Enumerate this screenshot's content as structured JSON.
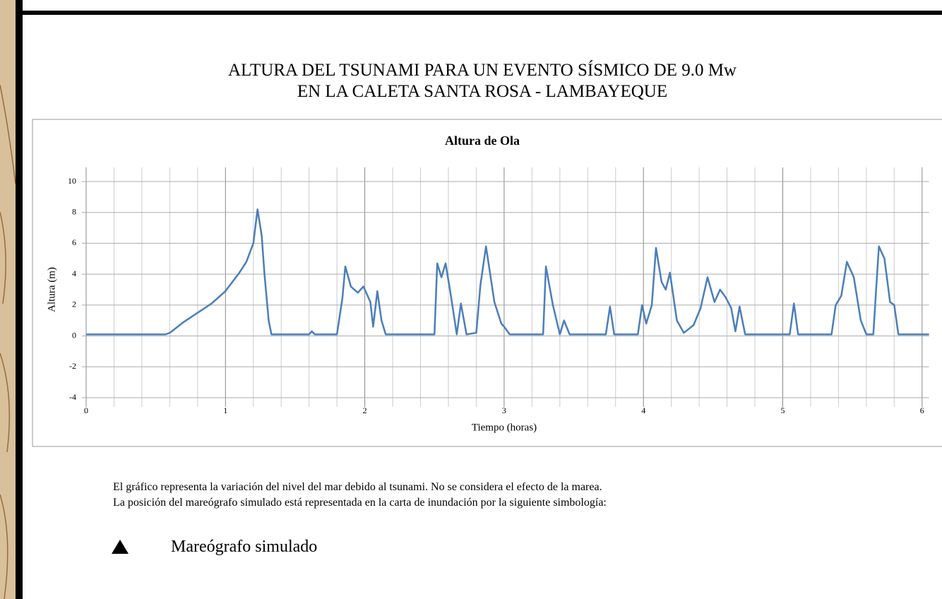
{
  "header": {
    "title_line1": "ALTURA DEL TSUNAMI PARA UN EVENTO SÍSMICO DE 9.0 Mw",
    "title_line2": "EN LA CALETA SANTA ROSA - LAMBAYEQUE"
  },
  "chart_data": {
    "type": "line",
    "title": "Altura de Ola",
    "x_label": "Tiempo (horas)",
    "y_label": "Altura (m)",
    "xlim": [
      0,
      6.05
    ],
    "ylim": [
      -4,
      10
    ],
    "xticks": [
      0,
      1,
      2,
      3,
      4,
      5,
      6
    ],
    "x_minor_grid": [
      0.2,
      0.4,
      0.6,
      0.8,
      1.2,
      1.4,
      1.6,
      1.8,
      2.2,
      2.4,
      2.6,
      2.8,
      3.2,
      3.4,
      3.6,
      3.8,
      4.2,
      4.4,
      4.6,
      4.8,
      5.2,
      5.4,
      5.6,
      5.8
    ],
    "yticks": [
      -4,
      -2,
      0,
      2,
      4,
      6,
      8,
      10
    ],
    "grid": true,
    "series": [
      {
        "color": "#4a7ebb",
        "x": [
          0,
          0.57,
          0.6,
          0.7,
          0.8,
          0.9,
          1.0,
          1.1,
          1.15,
          1.2,
          1.23,
          1.26,
          1.28,
          1.31,
          1.33,
          1.6,
          1.62,
          1.64,
          1.8,
          1.84,
          1.86,
          1.9,
          1.95,
          1.99,
          2.04,
          2.06,
          2.09,
          2.12,
          2.15,
          2.5,
          2.52,
          2.55,
          2.58,
          2.62,
          2.66,
          2.69,
          2.73,
          2.8,
          2.83,
          2.87,
          2.93,
          2.98,
          3.0,
          3.04,
          3.28,
          3.3,
          3.35,
          3.4,
          3.43,
          3.47,
          3.73,
          3.76,
          3.79,
          3.96,
          3.99,
          4.02,
          4.06,
          4.09,
          4.13,
          4.16,
          4.19,
          4.24,
          4.29,
          4.36,
          4.41,
          4.46,
          4.51,
          4.55,
          4.59,
          4.63,
          4.66,
          4.69,
          4.73,
          5.05,
          5.08,
          5.11,
          5.35,
          5.38,
          5.42,
          5.46,
          5.51,
          5.56,
          5.6,
          5.65,
          5.67,
          5.69,
          5.73,
          5.77,
          5.8,
          5.83,
          6.05
        ],
        "values": [
          0.1,
          0.1,
          0.2,
          0.9,
          1.5,
          2.1,
          2.9,
          4.1,
          4.8,
          6.0,
          8.2,
          6.5,
          4.0,
          1.0,
          0.1,
          0.1,
          0.3,
          0.1,
          0.1,
          2.5,
          4.5,
          3.2,
          2.8,
          3.2,
          2.2,
          0.6,
          2.9,
          1.0,
          0.1,
          0.1,
          4.7,
          3.8,
          4.7,
          2.5,
          0.1,
          2.1,
          0.1,
          0.2,
          3.3,
          5.8,
          2.2,
          0.8,
          0.6,
          0.1,
          0.1,
          4.5,
          2.0,
          0.1,
          1.0,
          0.1,
          0.1,
          1.9,
          0.1,
          0.1,
          2.0,
          0.8,
          2.0,
          5.7,
          3.5,
          3.0,
          4.1,
          1.0,
          0.2,
          0.7,
          1.8,
          3.8,
          2.2,
          3.0,
          2.5,
          1.8,
          0.3,
          1.9,
          0.1,
          0.1,
          2.1,
          0.1,
          0.1,
          2.0,
          2.6,
          4.8,
          3.8,
          1.0,
          0.1,
          0.1,
          3.0,
          5.8,
          5.0,
          2.2,
          2.0,
          0.1,
          0.1
        ]
      }
    ]
  },
  "notes": {
    "line1": "El gráfico representa la variación del nivel del mar debido al tsunami. No se considera el efecto de la marea.",
    "line2": "La posición del mareógrafo simulado está representada en la carta de inundación por la siguiente simbología:",
    "legend_label": "Mareógrafo simulado"
  }
}
